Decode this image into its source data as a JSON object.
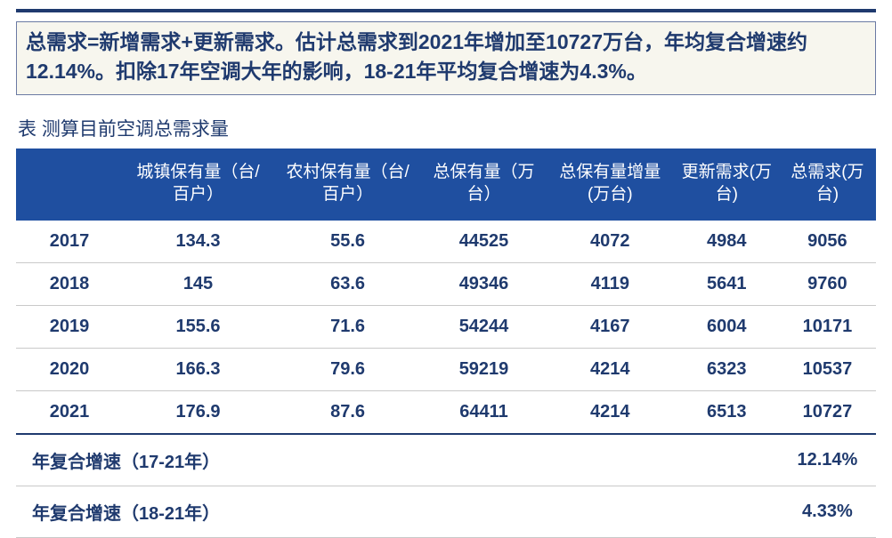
{
  "summary_text": "总需求=新增需求+更新需求。估计总需求到2021年增加至10727万台，年均复合增速约12.14%。扣除17年空调大年的影响，18-21年平均复合增速为4.3%。",
  "table_caption": "表 测算目前空调总需求量",
  "columns": [
    "",
    "城镇保有量（台/百户）",
    "农村保有量（台/百户）",
    "总保有量（万台）",
    "总保有量增量(万台)",
    "更新需求(万台)",
    "总需求(万台)"
  ],
  "rows": [
    [
      "2017",
      "134.3",
      "55.6",
      "44525",
      "4072",
      "4984",
      "9056"
    ],
    [
      "2018",
      "145",
      "63.6",
      "49346",
      "4119",
      "5641",
      "9760"
    ],
    [
      "2019",
      "155.6",
      "71.6",
      "54244",
      "4167",
      "6004",
      "10171"
    ],
    [
      "2020",
      "166.3",
      "79.6",
      "59219",
      "4214",
      "6323",
      "10537"
    ],
    [
      "2021",
      "176.9",
      "87.6",
      "64411",
      "4214",
      "6513",
      "10727"
    ]
  ],
  "summary_rows": [
    {
      "label": "年复合增速（17-21年）",
      "value": "12.14%"
    },
    {
      "label": "年复合增速（18-21年）",
      "value": "4.33%"
    }
  ],
  "colors": {
    "header_bg": "#1f4fa0",
    "text": "#1f3a6e",
    "rule": "#1f3a6e",
    "box_bg": "#f7f6ee",
    "box_border": "#6b7aa3",
    "row_border": "#c9c9c9"
  }
}
